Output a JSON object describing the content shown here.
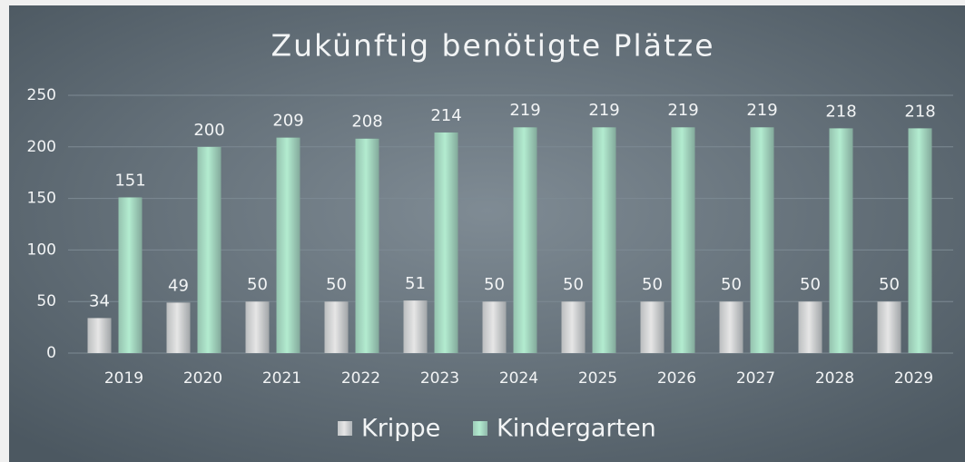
{
  "chart_data": {
    "type": "bar",
    "title": "Zukünftig benötigte Plätze",
    "categories": [
      "2019",
      "2020",
      "2021",
      "2022",
      "2023",
      "2024",
      "2025",
      "2026",
      "2027",
      "2028",
      "2029"
    ],
    "series": [
      {
        "name": "Krippe",
        "color": "#e6e6e6",
        "values": [
          34,
          49,
          50,
          50,
          51,
          50,
          50,
          50,
          50,
          50,
          50
        ]
      },
      {
        "name": "Kindergarten",
        "color": "#b3ecd0",
        "values": [
          151,
          200,
          209,
          208,
          214,
          219,
          219,
          219,
          219,
          218,
          218
        ]
      }
    ],
    "ylim": [
      0,
      250
    ],
    "yticks": [
      0,
      50,
      100,
      150,
      200,
      250
    ],
    "grid": true,
    "legend": "bottom"
  }
}
